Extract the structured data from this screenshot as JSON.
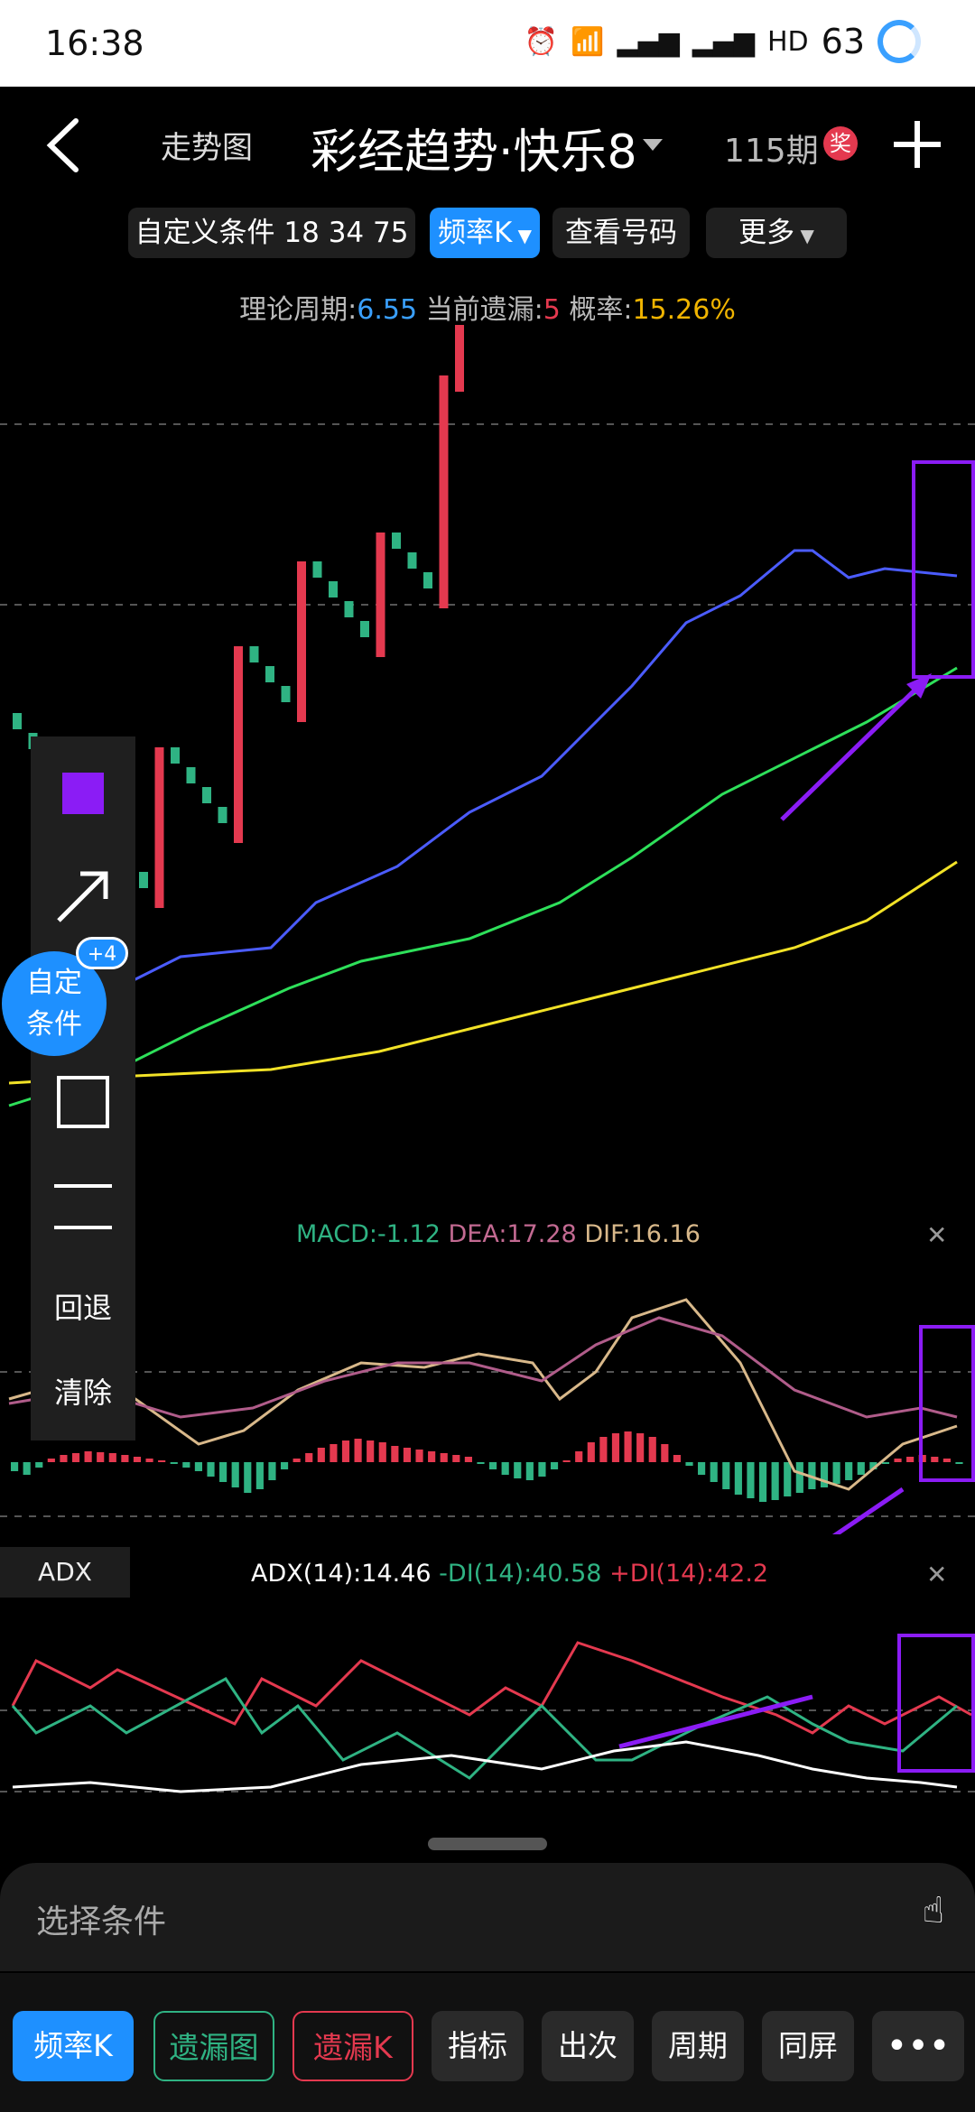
{
  "status_bar": {
    "time": "16:38",
    "battery": "63"
  },
  "nav": {
    "back_label": "",
    "chart_label": "走势图",
    "title": "彩经趋势·快乐8",
    "issue": "115期",
    "prize": "奖"
  },
  "toolbar": {
    "custom_condition": "自定义条件 18 34 75",
    "freq_k": "频率K",
    "view_numbers": "查看号码",
    "more": "更多"
  },
  "stats": {
    "period_label": "理论周期:",
    "period": "6.55",
    "miss_label": "当前遗漏:",
    "miss": "5",
    "prob_label": "概率:",
    "prob": "15.26%"
  },
  "macd": {
    "macd": "MACD:-1.12",
    "dea": "DEA:17.28",
    "dif": "DIF:16.16"
  },
  "adx": {
    "tag": "ADX",
    "adx": "ADX(14):14.46",
    "minus_di": "-DI(14):40.58",
    "plus_di": "+DI(14):42.2"
  },
  "draw_panel": {
    "undo": "回退",
    "clear": "清除"
  },
  "fab": {
    "line1": "自定",
    "line2": "条件",
    "badge": "+4"
  },
  "condition_bar": {
    "label": "选择条件"
  },
  "tabs": [
    "频率K",
    "遗漏图",
    "遗漏K",
    "指标",
    "出次",
    "周期",
    "同屏"
  ],
  "colors": {
    "accent": "#1e90ff",
    "up": "#e4394f",
    "down": "#2fb383",
    "annotation": "#8b1cf5"
  }
}
